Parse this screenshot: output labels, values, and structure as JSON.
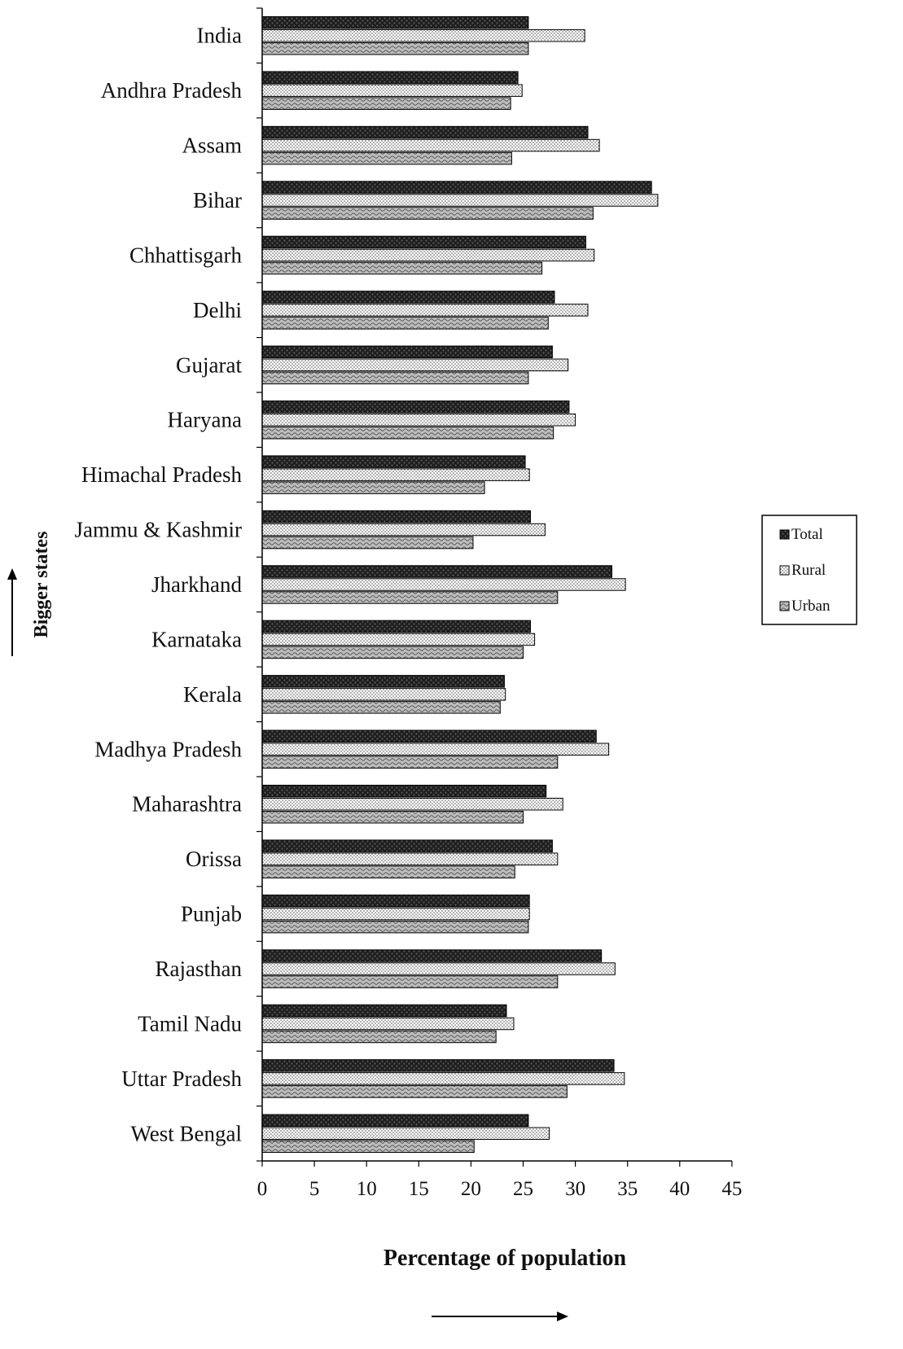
{
  "chart_data": {
    "type": "bar",
    "orientation": "horizontal",
    "xlabel": "Percentage of population",
    "ylabel": "Bigger states",
    "xlim": [
      0,
      45
    ],
    "xticks": [
      "0",
      "5",
      "10",
      "15",
      "20",
      "25",
      "30",
      "35",
      "40",
      "45"
    ],
    "grid": false,
    "legend_position": "right",
    "categories": [
      "India",
      "Andhra Pradesh",
      "Assam",
      "Bihar",
      "Chhattisgarh",
      "Delhi",
      "Gujarat",
      "Haryana",
      "Himachal Pradesh",
      "Jammu & Kashmir",
      "Jharkhand",
      "Karnataka",
      "Kerala",
      "Madhya Pradesh",
      "Maharashtra",
      "Orissa",
      "Punjab",
      "Rajasthan",
      "Tamil Nadu",
      "Uttar Pradesh",
      "West Bengal"
    ],
    "series": [
      {
        "name": "Total",
        "color": "#1a1a1a",
        "values": [
          25.5,
          24.5,
          31.2,
          37.3,
          31.0,
          28.0,
          27.8,
          29.4,
          25.2,
          25.7,
          33.5,
          25.7,
          23.2,
          32.0,
          27.2,
          27.8,
          25.6,
          32.5,
          23.4,
          33.7,
          25.5
        ]
      },
      {
        "name": "Rural",
        "color": "#ffffff",
        "values": [
          30.9,
          24.9,
          32.3,
          37.9,
          31.8,
          31.2,
          29.3,
          30.0,
          25.6,
          27.1,
          34.8,
          26.1,
          23.3,
          33.2,
          28.8,
          28.3,
          25.6,
          33.8,
          24.1,
          34.7,
          27.5
        ]
      },
      {
        "name": "Urban",
        "color": "#888888",
        "values": [
          25.5,
          23.8,
          23.9,
          31.7,
          26.8,
          27.4,
          25.5,
          27.9,
          21.3,
          20.2,
          28.3,
          25.0,
          22.8,
          28.3,
          25.0,
          24.2,
          25.5,
          28.3,
          22.4,
          29.2,
          20.3
        ]
      }
    ]
  }
}
